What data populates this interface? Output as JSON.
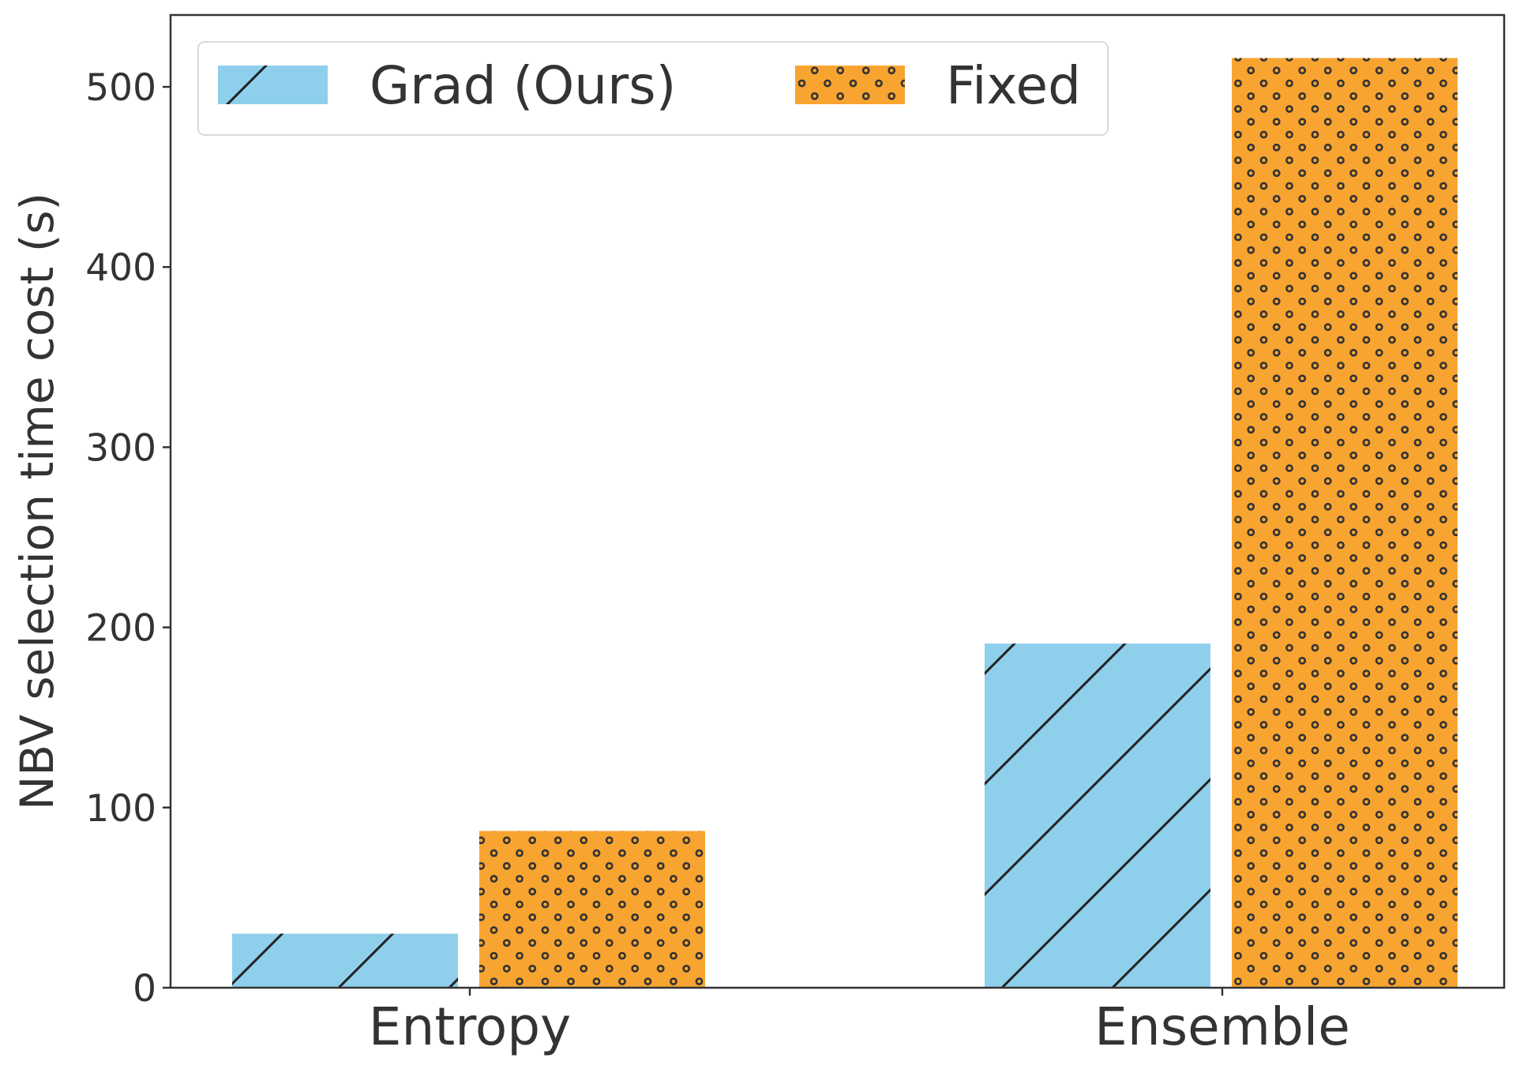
{
  "chart_data": {
    "type": "bar",
    "title": "",
    "xlabel": "",
    "ylabel": "NBV selection time cost (s)",
    "categories": [
      "Entropy",
      "Ensemble"
    ],
    "series": [
      {
        "name": "Grad (Ours)",
        "values": [
          30,
          191
        ],
        "color": "#8ECFEC",
        "hatch": "diagonal"
      },
      {
        "name": "Fixed",
        "values": [
          87,
          516
        ],
        "color": "#F8A431",
        "hatch": "dots"
      }
    ],
    "ylim": [
      0,
      540
    ],
    "yticks": [
      0,
      100,
      200,
      300,
      400,
      500
    ],
    "grid": false,
    "legend": {
      "position": "top-left",
      "columns": 2
    }
  }
}
